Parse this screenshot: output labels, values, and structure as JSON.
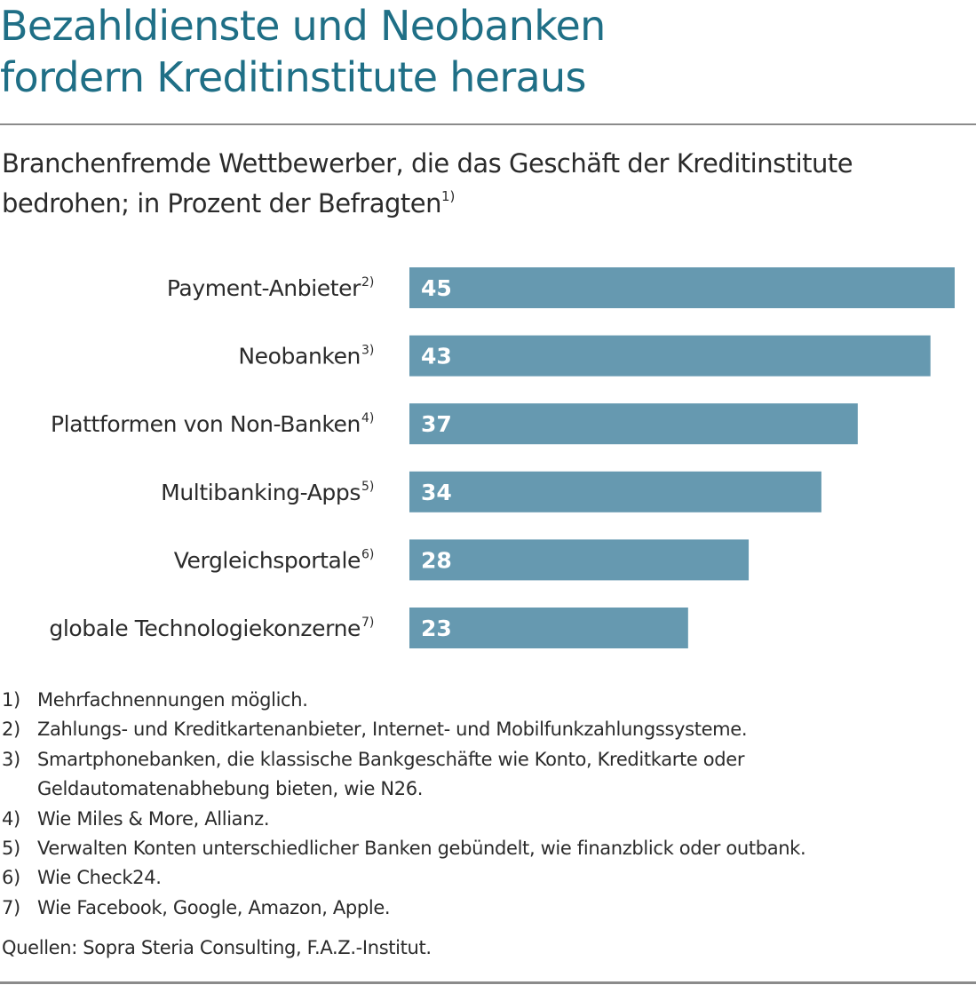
{
  "title": {
    "line1": "Bezahldienste und Neobanken",
    "line2": "fordern Kreditinstitute heraus"
  },
  "subtitle": {
    "line1": "Branchenfremde Wettbewerber, die das Geschäft der Kreditinstitute",
    "line2": "bedrohen; in Prozent der Befragten",
    "line2_marker": "1)"
  },
  "chart_data": {
    "type": "bar",
    "orientation": "horizontal",
    "categories": [
      "Payment-Anbieter",
      "Neobanken",
      "Plattformen von Non-Banken",
      "Multibanking-Apps",
      "Vergleichsportale",
      "globale Technologiekonzerne"
    ],
    "category_markers": [
      "2)",
      "3)",
      "4)",
      "5)",
      "6)",
      "7)"
    ],
    "values": [
      45,
      43,
      37,
      34,
      28,
      23
    ],
    "xlim": [
      0,
      45
    ],
    "grid": false,
    "bar_color": "#6699b0",
    "label_color": "#ffffff"
  },
  "footnotes": [
    {
      "num": "1)",
      "lines": [
        "Mehrfachnennungen möglich."
      ]
    },
    {
      "num": "2)",
      "lines": [
        "Zahlungs- und Kreditkartenanbieter, Internet- und Mobilfunkzahlungssysteme."
      ]
    },
    {
      "num": "3)",
      "lines": [
        "Smartphonebanken, die klassische Bankgeschäfte wie Konto, Kreditkarte oder",
        "Geldautomatenabhebung bieten, wie N26."
      ]
    },
    {
      "num": "4)",
      "lines": [
        "Wie Miles & More, Allianz."
      ]
    },
    {
      "num": "5)",
      "lines": [
        "Verwalten Konten unterschiedlicher Banken gebündelt, wie finanzblick oder outbank."
      ]
    },
    {
      "num": "6)",
      "lines": [
        "Wie Check24."
      ]
    },
    {
      "num": "7)",
      "lines": [
        "Wie Facebook, Google, Amazon, Apple."
      ]
    }
  ],
  "source": "Quellen: Sopra Steria Consulting, F.A.Z.-Institut.",
  "colors": {
    "title": "#1f6f86",
    "bar": "#6699b0",
    "text": "#2b2b2b",
    "rule": "#8b8b8b"
  }
}
